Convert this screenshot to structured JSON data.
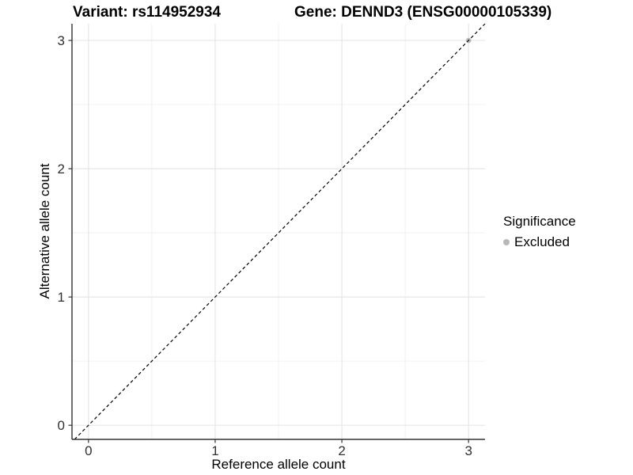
{
  "chart_data": {
    "type": "scatter",
    "title_left": "Variant: rs114952934",
    "title_right": "Gene: DENND3 (ENSG00000105339)",
    "xlabel": "Reference allele count",
    "ylabel": "Alternative allele count",
    "xlim": [
      -0.13,
      3.13
    ],
    "ylim": [
      -0.11,
      3.13
    ],
    "x_major_ticks": [
      0,
      1,
      2,
      3
    ],
    "y_major_ticks": [
      0,
      1,
      2,
      3
    ],
    "x_minor_ticks": [
      0.5,
      1.5,
      2.5
    ],
    "y_minor_ticks": [
      0.5,
      1.5,
      2.5
    ],
    "grid": true,
    "legend_position": "right",
    "legend_title": "Significance",
    "series": [
      {
        "name": "Excluded",
        "color": "#b8b8b8",
        "marker": "circle",
        "points": [
          {
            "x": 3,
            "y": 3
          }
        ]
      }
    ],
    "reference_line": {
      "slope": 1,
      "intercept": 0,
      "style": "dashed",
      "color": "#000000"
    }
  },
  "colors": {
    "background": "#ffffff",
    "grid_major": "#e6e6e6",
    "grid_minor": "#f0f0f0",
    "axis_line": "#333333",
    "tick_label": "#303030",
    "excluded_point": "#b8b8b8"
  }
}
